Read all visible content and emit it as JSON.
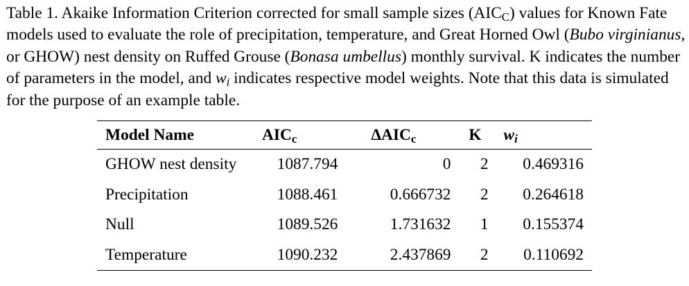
{
  "caption": {
    "part1": "Table 1. Akaike Information Criterion corrected for small sample sizes (AIC",
    "part1_sub": "C",
    "part2": ") values for Known Fate models used to evaluate the role of precipitation, temperature, and Great Horned Owl (",
    "species1": "Bubo virginianus",
    "part3": ", or GHOW) nest density on Ruffed Grouse (",
    "species2": "Bonasa umbellus",
    "part4": ") monthly survival. K indicates the number of parameters in the model, and ",
    "weight_symbol": "w",
    "weight_sub": "i",
    "part5": " indicates respective model weights. Note that this data is simulated for the purpose of an example table."
  },
  "table": {
    "headers": {
      "model_name": "Model Name",
      "aic": "AIC",
      "aic_sub": "c",
      "delta_aic": "ΔAIC",
      "delta_aic_sub": "c",
      "k": "K",
      "weight": "w",
      "weight_sub": "i"
    },
    "rows": [
      {
        "model": "GHOW nest density",
        "aicc": "1087.794",
        "delta": "0",
        "k": "2",
        "w": "0.469316"
      },
      {
        "model": "Precipitation",
        "aicc": "1088.461",
        "delta": "0.666732",
        "k": "2",
        "w": "0.264618"
      },
      {
        "model": "Null",
        "aicc": "1089.526",
        "delta": "1.731632",
        "k": "1",
        "w": "0.155374"
      },
      {
        "model": "Temperature",
        "aicc": "1090.232",
        "delta": "2.437869",
        "k": "2",
        "w": "0.110692"
      }
    ]
  }
}
